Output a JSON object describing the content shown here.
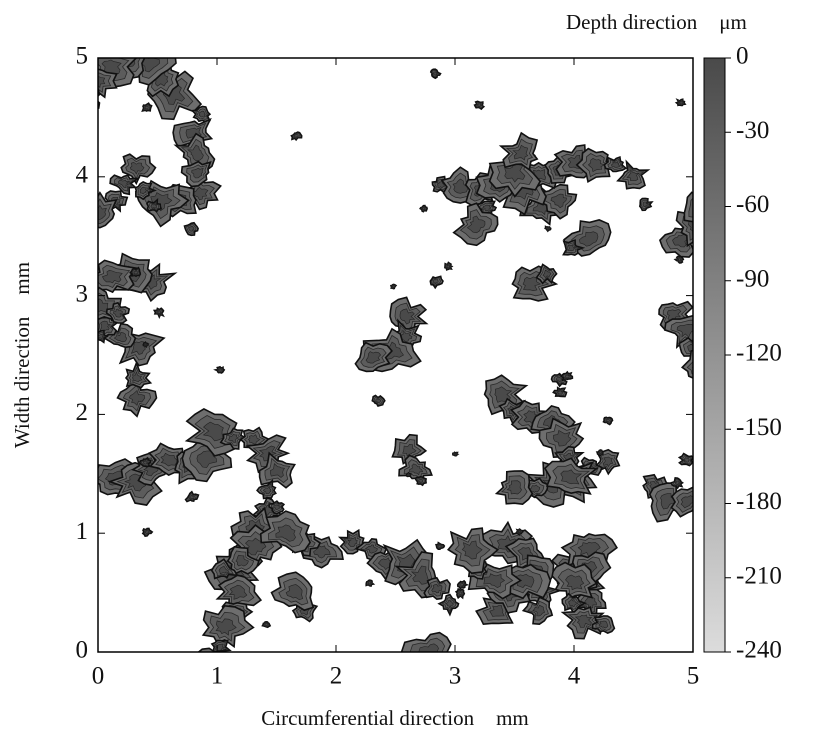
{
  "chart_data": {
    "type": "contour",
    "x_label": "Circumferential direction",
    "x_unit": "mm",
    "y_label": "Width direction",
    "y_unit": "mm",
    "colorbar_label": "Depth direction",
    "colorbar_unit": "μm",
    "xlim": [
      0,
      5
    ],
    "xticks": [
      0,
      1,
      2,
      3,
      4,
      5
    ],
    "ylim": [
      0,
      5
    ],
    "yticks": [
      0,
      1,
      2,
      3,
      4,
      5
    ],
    "clim": [
      -240,
      0
    ],
    "cticks": [
      0,
      -30,
      -60,
      -90,
      -120,
      -150,
      -180,
      -210,
      -240
    ]
  }
}
